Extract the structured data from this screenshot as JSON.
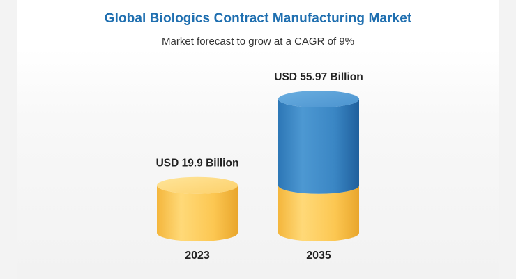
{
  "title": "Global Biologics Contract Manufacturing Market",
  "subtitle": "Market forecast to grow at a CAGR of 9%",
  "colors": {
    "title": "#1f6fb0",
    "base_segment": "#fcc851",
    "growth_segment": "#3a88c6"
  },
  "chart_data": {
    "type": "bar",
    "style": "3d-cylinder",
    "categories": [
      "2023",
      "2035"
    ],
    "values": [
      19.9,
      55.97
    ],
    "value_labels": [
      "USD 19.9 Billion",
      "USD 55.97 Billion"
    ],
    "unit": "USD Billion",
    "stacked_segments": [
      {
        "name": "",
        "values": [
          19.9,
          19.9
        ],
        "color": "#fcc851"
      },
      {
        "name": "",
        "values": [
          0,
          36.07
        ],
        "color": "#3a88c6"
      }
    ],
    "ylim": [
      0,
      60
    ],
    "grid": false,
    "legend": "none"
  }
}
